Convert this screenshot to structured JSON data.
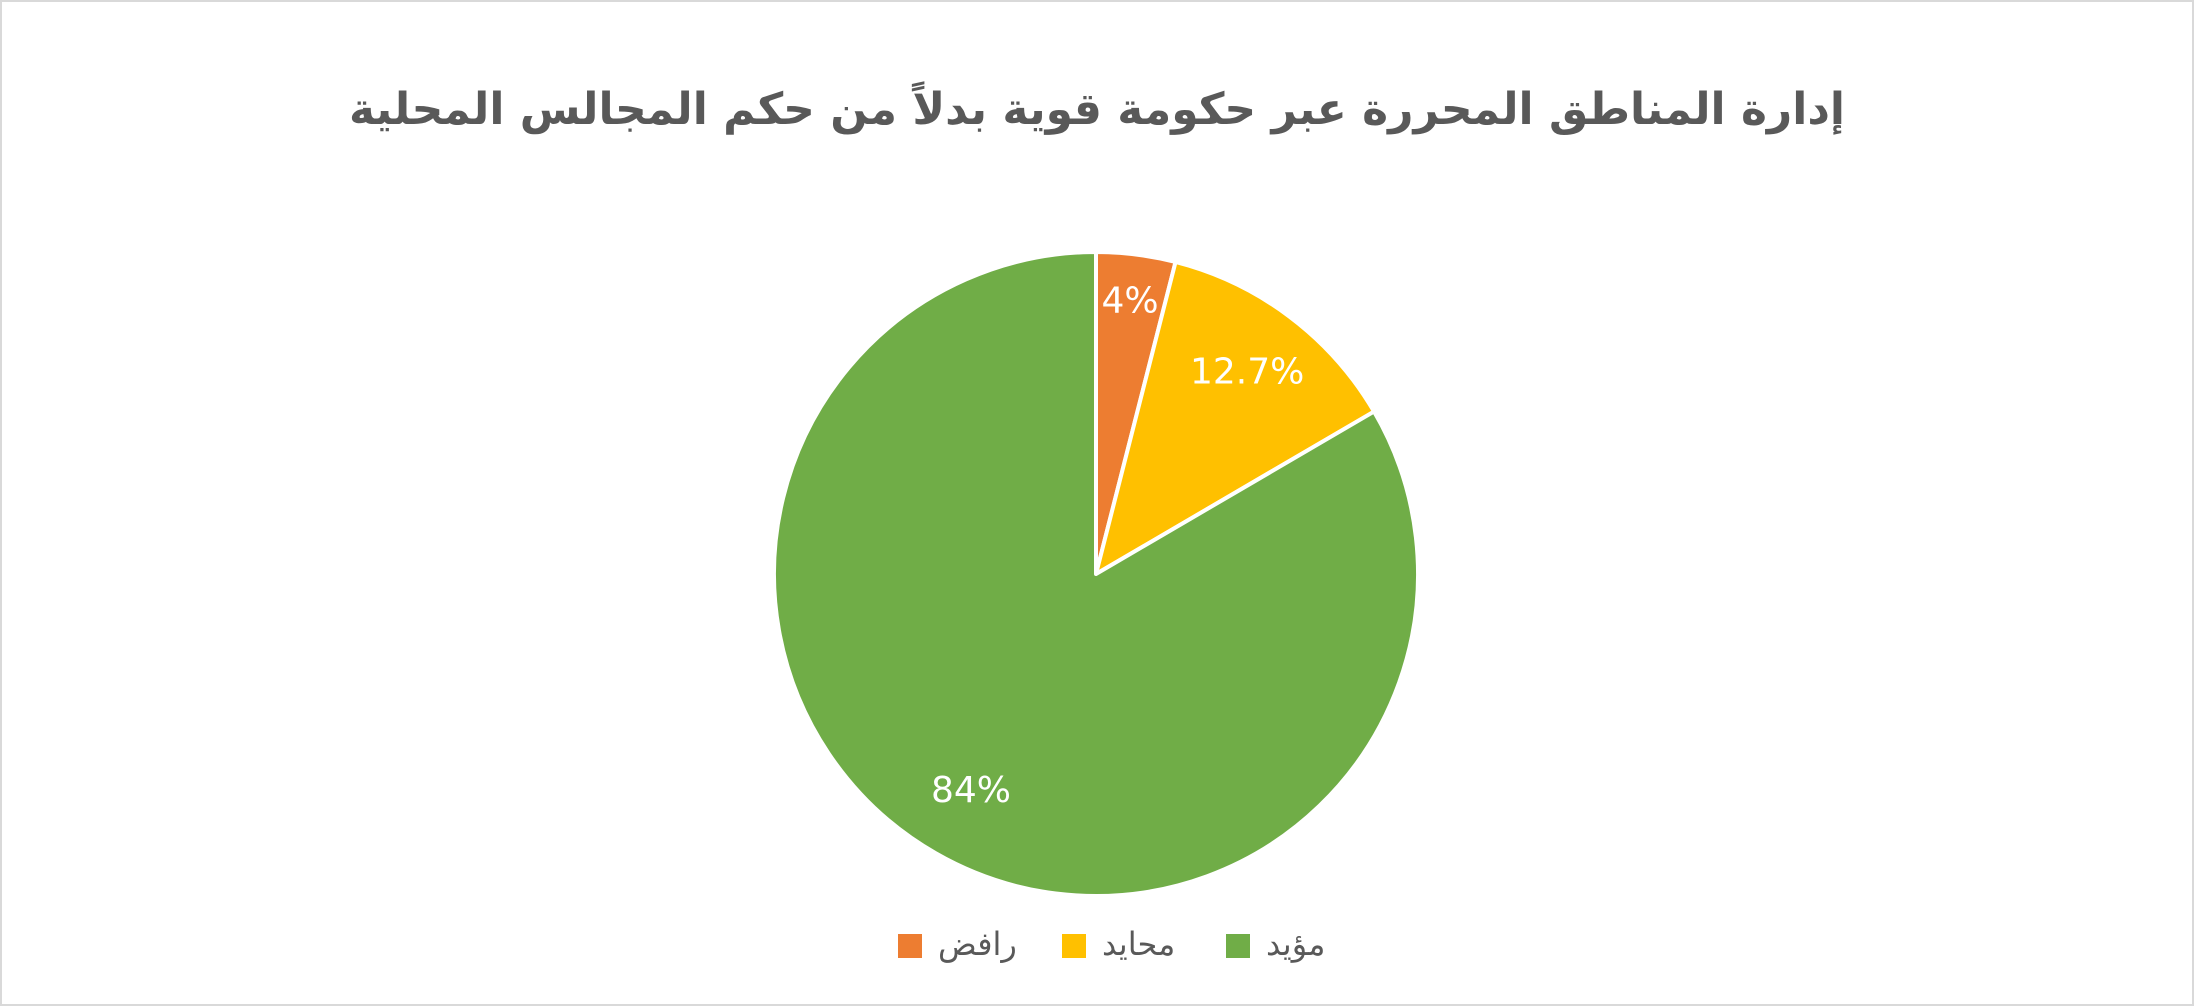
{
  "chart_data": {
    "type": "pie",
    "title": "إدارة المناطق المحررة عبر حكومة قوية بدلاً من حكم المجالس المحلية",
    "categories": [
      "رافض",
      "محايد",
      "مؤيد"
    ],
    "values": [
      4,
      12.7,
      84
    ],
    "value_labels": [
      "4%",
      "12.7%",
      "84%"
    ],
    "colors": [
      "#ED7D31",
      "#FFC000",
      "#70AD47"
    ],
    "legend": "bottom"
  }
}
